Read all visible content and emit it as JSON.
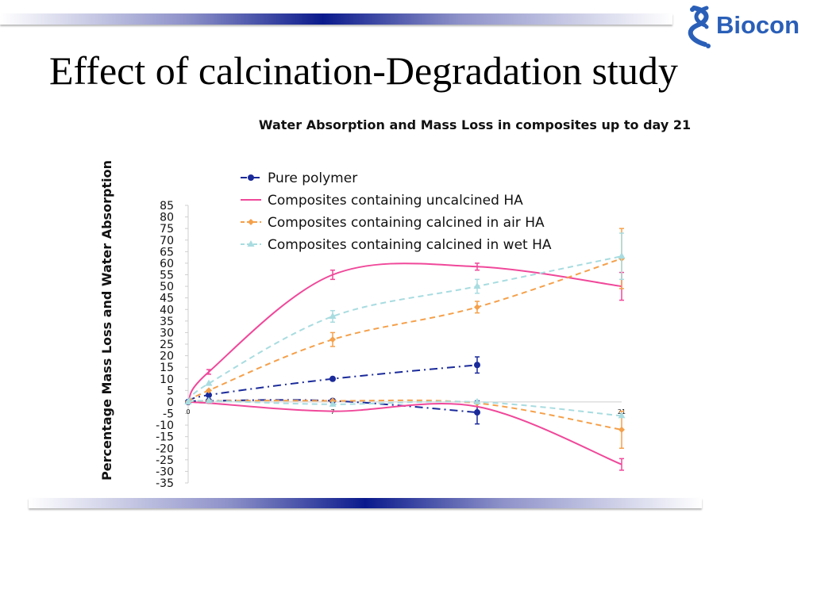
{
  "slide": {
    "title": "Effect of calcination-Degradation study",
    "logo_text": "Biocon"
  },
  "colors": {
    "accent_bar": "#0a1a8c",
    "logo_blue": "#2a5fb8"
  },
  "chart_data": {
    "type": "line",
    "title": "Water Absorption and Mass Loss in composites up to day 21",
    "ylabel": "Percentage  Mass Loss and Water Absorption",
    "xlabel": "",
    "ylim": [
      -35,
      85
    ],
    "xlim": [
      0,
      21
    ],
    "yticks": [
      85,
      80,
      75,
      70,
      65,
      60,
      55,
      50,
      45,
      40,
      35,
      30,
      25,
      20,
      15,
      10,
      5,
      0,
      -5,
      -10,
      -15,
      -20,
      -25,
      -30,
      -35
    ],
    "xtick_labels": [
      {
        "x": 0,
        "label": "0"
      },
      {
        "x": 7,
        "label": "7"
      },
      {
        "x": 21,
        "label": "21"
      }
    ],
    "grid": "horizontal",
    "legend_position": "top-left",
    "series": [
      {
        "name": "Pure polymer",
        "color": "#1a2a9a",
        "style": "dashdot",
        "marker": "circle",
        "curves": [
          {
            "points": [
              {
                "x": 0,
                "y": 0
              },
              {
                "x": 1,
                "y": 3
              },
              {
                "x": 7,
                "y": 10
              },
              {
                "x": 14,
                "y": 16,
                "err": 3.5
              }
            ]
          },
          {
            "points": [
              {
                "x": 0,
                "y": 0
              },
              {
                "x": 1,
                "y": 0.5
              },
              {
                "x": 7,
                "y": 0.5
              },
              {
                "x": 14,
                "y": -4.5,
                "err": 5
              }
            ]
          }
        ]
      },
      {
        "name": "Composites containing uncalcined HA",
        "color": "#f0489a",
        "style": "solid",
        "marker": "none",
        "curves": [
          {
            "points": [
              {
                "x": 0,
                "y": 0
              },
              {
                "x": 1,
                "y": 13,
                "err": 1
              },
              {
                "x": 7,
                "y": 55,
                "err": 2
              },
              {
                "x": 14,
                "y": 58.5,
                "err": 1.5
              },
              {
                "x": 21,
                "y": 50,
                "err": 6
              }
            ]
          },
          {
            "points": [
              {
                "x": 0,
                "y": 0
              },
              {
                "x": 1,
                "y": -0.5
              },
              {
                "x": 7,
                "y": -4
              },
              {
                "x": 14,
                "y": -2
              },
              {
                "x": 21,
                "y": -27,
                "err": 2.5
              }
            ]
          }
        ]
      },
      {
        "name": "Composites containing calcined in air HA",
        "color": "#f5a04a",
        "style": "dashed",
        "marker": "diamond",
        "curves": [
          {
            "points": [
              {
                "x": 0,
                "y": 0
              },
              {
                "x": 1,
                "y": 5
              },
              {
                "x": 7,
                "y": 27,
                "err": 3
              },
              {
                "x": 14,
                "y": 41,
                "err": 2.5
              },
              {
                "x": 21,
                "y": 62,
                "err": 13
              }
            ]
          },
          {
            "points": [
              {
                "x": 0,
                "y": 0
              },
              {
                "x": 1,
                "y": 0.5
              },
              {
                "x": 7,
                "y": 0.5
              },
              {
                "x": 14,
                "y": -0.5
              },
              {
                "x": 21,
                "y": -12,
                "err": 8
              }
            ]
          }
        ]
      },
      {
        "name": "Composites containing calcined in wet HA",
        "color": "#a8dce0",
        "style": "dashed",
        "marker": "triangle",
        "curves": [
          {
            "points": [
              {
                "x": 0,
                "y": 0
              },
              {
                "x": 1,
                "y": 8
              },
              {
                "x": 7,
                "y": 37,
                "err": 2.5
              },
              {
                "x": 14,
                "y": 50,
                "err": 3
              },
              {
                "x": 21,
                "y": 63,
                "err": 10
              }
            ]
          },
          {
            "points": [
              {
                "x": 0,
                "y": 0
              },
              {
                "x": 1,
                "y": 0.5
              },
              {
                "x": 7,
                "y": -1
              },
              {
                "x": 14,
                "y": 0
              },
              {
                "x": 21,
                "y": -6
              }
            ]
          }
        ]
      }
    ]
  }
}
